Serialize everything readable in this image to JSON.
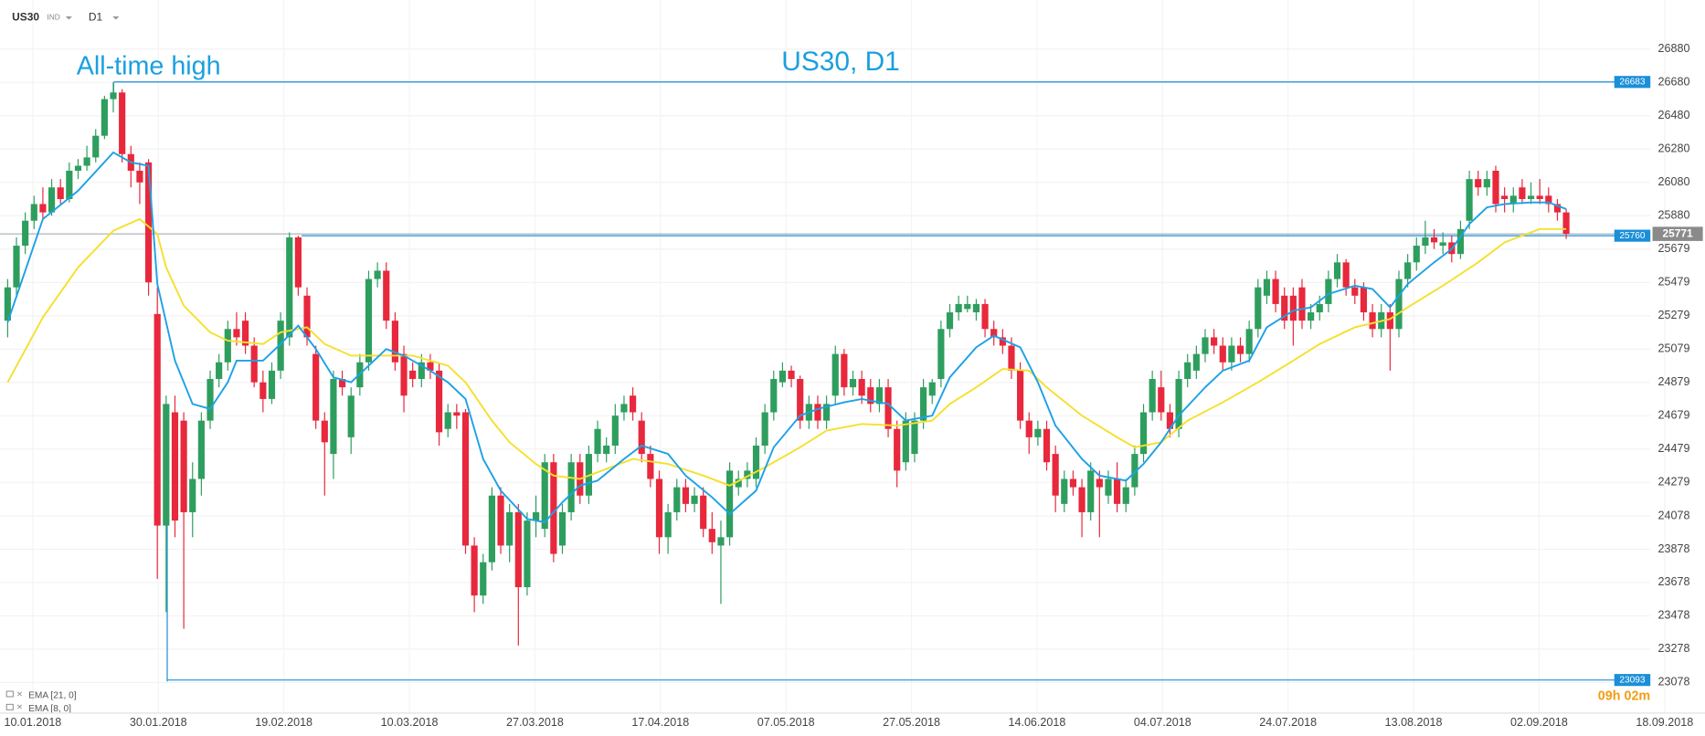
{
  "toolbar": {
    "symbol": "US30",
    "market": "IND",
    "timeframe": "D1"
  },
  "timer": "09h 02m",
  "chart_data": {
    "type": "candlestick",
    "title": "US30, D1",
    "annotations": [
      {
        "text": "All-time high"
      }
    ],
    "up_color": "#2e9e5e",
    "down_color": "#e8283c",
    "grid": true,
    "ylim": [
      23078,
      26880
    ],
    "yticks": [
      26880,
      26680,
      26480,
      26280,
      26080,
      25880,
      25679,
      25479,
      25279,
      25079,
      24879,
      24679,
      24479,
      24279,
      24078,
      23878,
      23678,
      23478,
      23278,
      23078
    ],
    "xtick_labels": [
      "10.01.2018",
      "30.01.2018",
      "19.02.2018",
      "10.03.2018",
      "27.03.2018",
      "17.04.2018",
      "07.05.2018",
      "27.05.2018",
      "14.06.2018",
      "04.07.2018",
      "24.07.2018",
      "13.08.2018",
      "02.09.2018",
      "18.09.2018"
    ],
    "levels": [
      {
        "value": 26683,
        "color": "#1a8fd8"
      },
      {
        "value": 25760,
        "color": "#1a8fd8"
      },
      {
        "value": 23093,
        "color": "#1a8fd8"
      }
    ],
    "last_price": 25771,
    "last_price_color": "#8a8a8a",
    "ohlc": [
      [
        25250,
        25500,
        25150,
        25450
      ],
      [
        25450,
        25750,
        25400,
        25700
      ],
      [
        25700,
        25900,
        25650,
        25850
      ],
      [
        25850,
        26000,
        25800,
        25950
      ],
      [
        25950,
        26050,
        25850,
        25900
      ],
      [
        25900,
        26100,
        25880,
        26050
      ],
      [
        26050,
        26100,
        25950,
        25980
      ],
      [
        25980,
        26200,
        25960,
        26150
      ],
      [
        26150,
        26220,
        26100,
        26180
      ],
      [
        26180,
        26300,
        26150,
        26230
      ],
      [
        26230,
        26400,
        26200,
        26360
      ],
      [
        26360,
        26600,
        26340,
        26580
      ],
      [
        26580,
        26683,
        26500,
        26620
      ],
      [
        26620,
        26640,
        26200,
        26250
      ],
      [
        26250,
        26300,
        26050,
        26150
      ],
      [
        26150,
        26200,
        25950,
        26080
      ],
      [
        26200,
        26220,
        25400,
        25480
      ],
      [
        25290,
        25450,
        23700,
        24020
      ],
      [
        24020,
        24800,
        23500,
        24750
      ],
      [
        24700,
        24800,
        23950,
        24050
      ],
      [
        24650,
        24700,
        23400,
        24100
      ],
      [
        24100,
        24400,
        23950,
        24300
      ],
      [
        24300,
        24700,
        24200,
        24650
      ],
      [
        24650,
        24950,
        24600,
        24900
      ],
      [
        24900,
        25050,
        24850,
        25000
      ],
      [
        25000,
        25250,
        24950,
        25200
      ],
      [
        25200,
        25300,
        25100,
        25150
      ],
      [
        25250,
        25300,
        25050,
        25100
      ],
      [
        25100,
        25150,
        24850,
        24880
      ],
      [
        24880,
        24950,
        24700,
        24780
      ],
      [
        24780,
        25000,
        24750,
        24950
      ],
      [
        24950,
        25300,
        24900,
        25250
      ],
      [
        25150,
        25780,
        25100,
        25750
      ],
      [
        25750,
        25760,
        25400,
        25450
      ],
      [
        25400,
        25450,
        25100,
        25150
      ],
      [
        25050,
        25100,
        24600,
        24650
      ],
      [
        24650,
        24700,
        24200,
        24520
      ],
      [
        24450,
        24950,
        24300,
        24900
      ],
      [
        24900,
        24950,
        24800,
        24850
      ],
      [
        24550,
        24850,
        24450,
        24800
      ],
      [
        24850,
        25050,
        24800,
        25000
      ],
      [
        25000,
        25550,
        24950,
        25500
      ],
      [
        25500,
        25600,
        25450,
        25550
      ],
      [
        25550,
        25600,
        25200,
        25250
      ],
      [
        25250,
        25300,
        24950,
        25000
      ],
      [
        25050,
        25100,
        24700,
        24800
      ],
      [
        24950,
        25000,
        24850,
        24900
      ],
      [
        24900,
        25050,
        24850,
        25000
      ],
      [
        25000,
        25050,
        24900,
        24950
      ],
      [
        24950,
        25000,
        24500,
        24580
      ],
      [
        24600,
        24750,
        24550,
        24700
      ],
      [
        24700,
        24750,
        24600,
        24680
      ],
      [
        24700,
        24720,
        23850,
        23900
      ],
      [
        23900,
        23950,
        23500,
        23600
      ],
      [
        23600,
        23850,
        23550,
        23800
      ],
      [
        23800,
        24250,
        23750,
        24200
      ],
      [
        24200,
        24250,
        23850,
        23900
      ],
      [
        23900,
        24150,
        23800,
        24100
      ],
      [
        24100,
        24150,
        23300,
        23650
      ],
      [
        23650,
        24100,
        23600,
        24050
      ],
      [
        24050,
        24200,
        23950,
        24100
      ],
      [
        24000,
        24450,
        23950,
        24400
      ],
      [
        24400,
        24450,
        23800,
        23850
      ],
      [
        23900,
        24150,
        23850,
        24100
      ],
      [
        24100,
        24450,
        24050,
        24400
      ],
      [
        24400,
        24450,
        24150,
        24200
      ],
      [
        24200,
        24500,
        24150,
        24450
      ],
      [
        24450,
        24650,
        24400,
        24600
      ],
      [
        24450,
        24550,
        24400,
        24500
      ],
      [
        24500,
        24750,
        24450,
        24680
      ],
      [
        24700,
        24800,
        24650,
        24750
      ],
      [
        24800,
        24850,
        24650,
        24700
      ],
      [
        24650,
        24700,
        24400,
        24450
      ],
      [
        24450,
        24500,
        24250,
        24300
      ],
      [
        24300,
        24350,
        23850,
        23950
      ],
      [
        23950,
        24150,
        23850,
        24100
      ],
      [
        24100,
        24300,
        24050,
        24250
      ],
      [
        24250,
        24300,
        24100,
        24150
      ],
      [
        24150,
        24250,
        24100,
        24200
      ],
      [
        24200,
        24250,
        23950,
        24000
      ],
      [
        24000,
        24100,
        23850,
        23920
      ],
      [
        23900,
        24050,
        23550,
        23950
      ],
      [
        23950,
        24400,
        23900,
        24350
      ],
      [
        24250,
        24350,
        24200,
        24300
      ],
      [
        24300,
        24400,
        24250,
        24350
      ],
      [
        24300,
        24550,
        24250,
        24500
      ],
      [
        24500,
        24750,
        24450,
        24700
      ],
      [
        24700,
        24950,
        24650,
        24900
      ],
      [
        24880,
        25000,
        24850,
        24950
      ],
      [
        24950,
        24980,
        24850,
        24900
      ],
      [
        24900,
        24920,
        24600,
        24650
      ],
      [
        24650,
        24800,
        24600,
        24750
      ],
      [
        24750,
        24800,
        24600,
        24650
      ],
      [
        24650,
        24800,
        24600,
        24750
      ],
      [
        24800,
        25100,
        24750,
        25050
      ],
      [
        25050,
        25080,
        24800,
        24850
      ],
      [
        24850,
        24950,
        24800,
        24900
      ],
      [
        24900,
        24950,
        24750,
        24800
      ],
      [
        24850,
        24900,
        24700,
        24750
      ],
      [
        24750,
        24900,
        24700,
        24850
      ],
      [
        24850,
        24900,
        24550,
        24600
      ],
      [
        24600,
        24650,
        24250,
        24350
      ],
      [
        24400,
        24700,
        24350,
        24650
      ],
      [
        24450,
        24700,
        24400,
        24650
      ],
      [
        24650,
        24900,
        24600,
        24850
      ],
      [
        24800,
        24900,
        24750,
        24880
      ],
      [
        24900,
        25250,
        24850,
        25200
      ],
      [
        25200,
        25350,
        25150,
        25300
      ],
      [
        25300,
        25400,
        25250,
        25350
      ],
      [
        25320,
        25400,
        25300,
        25350
      ],
      [
        25300,
        25380,
        25250,
        25350
      ],
      [
        25350,
        25380,
        25150,
        25200
      ],
      [
        25200,
        25250,
        25100,
        25150
      ],
      [
        25150,
        25200,
        25050,
        25100
      ],
      [
        25100,
        25150,
        24900,
        24950
      ],
      [
        24950,
        25000,
        24600,
        24650
      ],
      [
        24650,
        24700,
        24450,
        24550
      ],
      [
        24550,
        24650,
        24500,
        24600
      ],
      [
        24600,
        24650,
        24350,
        24400
      ],
      [
        24450,
        24500,
        24100,
        24200
      ],
      [
        24150,
        24350,
        24100,
        24300
      ],
      [
        24300,
        24350,
        24200,
        24250
      ],
      [
        24250,
        24300,
        23950,
        24100
      ],
      [
        24100,
        24400,
        24050,
        24350
      ],
      [
        24300,
        24350,
        23950,
        24250
      ],
      [
        24200,
        24350,
        24150,
        24300
      ],
      [
        24300,
        24400,
        24100,
        24150
      ],
      [
        24150,
        24300,
        24100,
        24250
      ],
      [
        24250,
        24500,
        24200,
        24450
      ],
      [
        24450,
        24750,
        24400,
        24700
      ],
      [
        24700,
        24950,
        24650,
        24900
      ],
      [
        24850,
        24950,
        24650,
        24700
      ],
      [
        24700,
        24750,
        24550,
        24600
      ],
      [
        24600,
        24950,
        24550,
        24900
      ],
      [
        24900,
        25050,
        24850,
        25000
      ],
      [
        24950,
        25100,
        24900,
        25050
      ],
      [
        25050,
        25200,
        25000,
        25150
      ],
      [
        25150,
        25200,
        25050,
        25100
      ],
      [
        25100,
        25150,
        24950,
        25000
      ],
      [
        25000,
        25150,
        24950,
        25100
      ],
      [
        25100,
        25150,
        25000,
        25050
      ],
      [
        25050,
        25250,
        25000,
        25200
      ],
      [
        25200,
        25500,
        25150,
        25450
      ],
      [
        25400,
        25550,
        25350,
        25500
      ],
      [
        25500,
        25550,
        25300,
        25350
      ],
      [
        25400,
        25450,
        25200,
        25250
      ],
      [
        25400,
        25450,
        25100,
        25250
      ],
      [
        25450,
        25500,
        25200,
        25250
      ],
      [
        25250,
        25350,
        25200,
        25300
      ],
      [
        25300,
        25400,
        25250,
        25350
      ],
      [
        25350,
        25550,
        25300,
        25500
      ],
      [
        25500,
        25650,
        25450,
        25600
      ],
      [
        25600,
        25620,
        25400,
        25450
      ],
      [
        25450,
        25500,
        25350,
        25400
      ],
      [
        25450,
        25480,
        25250,
        25300
      ],
      [
        25300,
        25350,
        25150,
        25200
      ],
      [
        25200,
        25350,
        25150,
        25300
      ],
      [
        25300,
        25350,
        24950,
        25200
      ],
      [
        25200,
        25550,
        25150,
        25500
      ],
      [
        25500,
        25650,
        25450,
        25600
      ],
      [
        25600,
        25750,
        25550,
        25700
      ],
      [
        25700,
        25850,
        25650,
        25750
      ],
      [
        25750,
        25800,
        25680,
        25720
      ],
      [
        25700,
        25780,
        25650,
        25720
      ],
      [
        25720,
        25760,
        25600,
        25650
      ],
      [
        25650,
        25850,
        25620,
        25800
      ],
      [
        25850,
        26150,
        25800,
        26100
      ],
      [
        26100,
        26150,
        26000,
        26050
      ],
      [
        26050,
        26150,
        26000,
        26100
      ],
      [
        26150,
        26180,
        25900,
        25950
      ],
      [
        26000,
        26050,
        25900,
        25980
      ],
      [
        25950,
        26050,
        25900,
        26000
      ],
      [
        26050,
        26100,
        25950,
        25980
      ],
      [
        25980,
        26080,
        25950,
        26000
      ],
      [
        26000,
        26100,
        25950,
        25980
      ],
      [
        26000,
        26050,
        25900,
        25950
      ],
      [
        25950,
        25980,
        25850,
        25900
      ],
      [
        25900,
        25920,
        25740,
        25771
      ]
    ],
    "series": [
      {
        "name": "EMA [21, 0]",
        "color": "#f5e02e",
        "x": [
          0,
          4,
          8,
          12,
          15,
          17,
          18,
          20,
          23,
          25,
          29,
          31,
          34,
          36,
          39,
          43,
          46,
          50,
          52,
          55,
          57,
          60,
          62,
          65,
          67,
          71,
          75,
          79,
          82,
          86,
          90,
          93,
          97,
          101,
          105,
          107,
          110,
          113,
          116,
          118,
          122,
          126,
          128,
          131,
          134,
          138,
          142,
          146,
          149,
          153,
          157,
          159,
          163,
          167,
          170,
          174,
          177
        ],
        "values": [
          24880,
          25270,
          25570,
          25790,
          25860,
          25770,
          25570,
          25340,
          25180,
          25130,
          25110,
          25180,
          25210,
          25110,
          25040,
          25040,
          25040,
          24980,
          24880,
          24650,
          24520,
          24390,
          24320,
          24300,
          24340,
          24420,
          24390,
          24320,
          24260,
          24370,
          24490,
          24590,
          24630,
          24620,
          24650,
          24750,
          24850,
          24960,
          24950,
          24850,
          24680,
          24550,
          24490,
          24520,
          24650,
          24760,
          24880,
          25010,
          25110,
          25210,
          25260,
          25330,
          25460,
          25600,
          25720,
          25800,
          25800
        ]
      },
      {
        "name": "EMA [8, 0]",
        "color": "#1da1e6",
        "x": [
          0,
          4,
          8,
          12,
          14,
          16,
          17,
          19,
          21,
          23,
          25,
          26,
          29,
          31,
          33,
          35,
          37,
          39,
          41,
          43,
          45,
          48,
          50,
          52,
          54,
          56,
          59,
          61,
          63,
          65,
          67,
          70,
          72,
          75,
          77,
          80,
          82,
          85,
          87,
          90,
          92,
          95,
          97,
          100,
          102,
          105,
          107,
          110,
          112,
          115,
          117,
          119,
          122,
          124,
          127,
          129,
          131,
          133,
          136,
          138,
          141,
          143,
          146,
          148,
          150,
          153,
          155,
          157,
          159,
          162,
          164,
          166,
          168,
          170,
          173,
          175,
          177
        ],
        "values": [
          25240,
          25860,
          26030,
          26260,
          26200,
          26180,
          25470,
          25010,
          24750,
          24720,
          24880,
          25010,
          25010,
          25110,
          25220,
          25080,
          24910,
          24880,
          24980,
          25080,
          25040,
          24950,
          24880,
          24780,
          24420,
          24230,
          24060,
          24040,
          24160,
          24260,
          24290,
          24420,
          24500,
          24450,
          24320,
          24190,
          24090,
          24230,
          24490,
          24680,
          24720,
          24760,
          24780,
          24750,
          24650,
          24680,
          24910,
          25090,
          25160,
          25090,
          24880,
          24620,
          24420,
          24320,
          24290,
          24390,
          24520,
          24680,
          24850,
          24950,
          25010,
          25210,
          25310,
          25330,
          25410,
          25460,
          25440,
          25330,
          25470,
          25600,
          25680,
          25830,
          25930,
          25950,
          25960,
          25960,
          25920
        ]
      }
    ]
  }
}
